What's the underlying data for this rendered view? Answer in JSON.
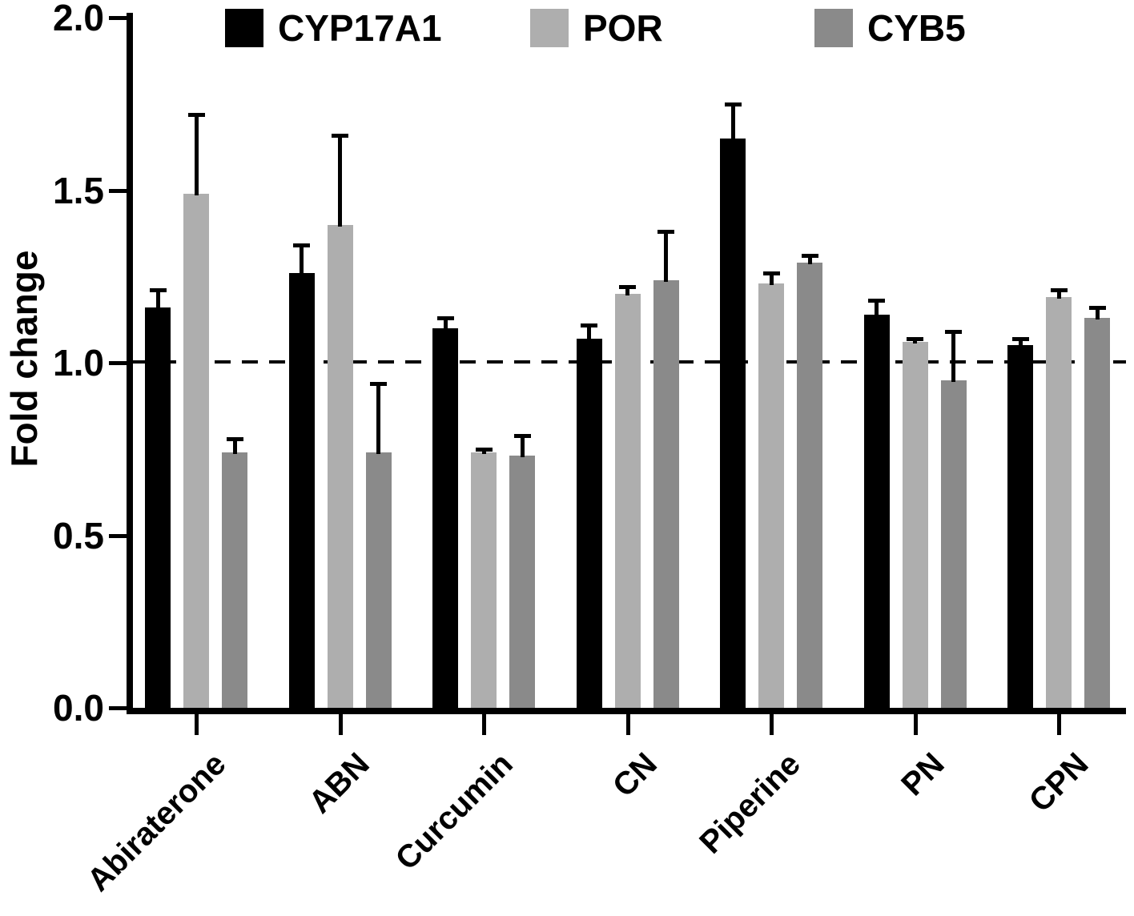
{
  "chart_data": {
    "type": "bar",
    "title": "",
    "xlabel": "",
    "ylabel": "Fold change",
    "ylim": [
      0.0,
      2.0
    ],
    "yticks": [
      "0.0",
      "0.5",
      "1.0",
      "1.5",
      "2.0"
    ],
    "reference_line": 1.0,
    "grid": false,
    "legend_position": "top",
    "background_color": "#ffffff",
    "axis_color": "#000000",
    "error_bar_color": "#000000",
    "categories": [
      "Abiraterone",
      "ABN",
      "Curcumin",
      "CN",
      "Piperine",
      "PN",
      "CPN"
    ],
    "series": [
      {
        "name": "CYP17A1",
        "color": "#000000",
        "values": [
          1.16,
          1.26,
          1.1,
          1.07,
          1.65,
          1.14,
          1.05
        ],
        "errors_upper": [
          0.05,
          0.08,
          0.03,
          0.04,
          0.1,
          0.04,
          0.02
        ]
      },
      {
        "name": "POR",
        "color": "#aeaeae",
        "values": [
          1.49,
          1.4,
          0.74,
          1.2,
          1.23,
          1.06,
          1.19
        ],
        "errors_upper": [
          0.23,
          0.26,
          0.01,
          0.02,
          0.03,
          0.01,
          0.02
        ]
      },
      {
        "name": "CYB5",
        "color": "#8a8a8a",
        "values": [
          0.74,
          0.74,
          0.73,
          1.24,
          1.29,
          0.95,
          1.13
        ],
        "errors_upper": [
          0.04,
          0.2,
          0.06,
          0.14,
          0.02,
          0.14,
          0.03
        ]
      }
    ]
  }
}
